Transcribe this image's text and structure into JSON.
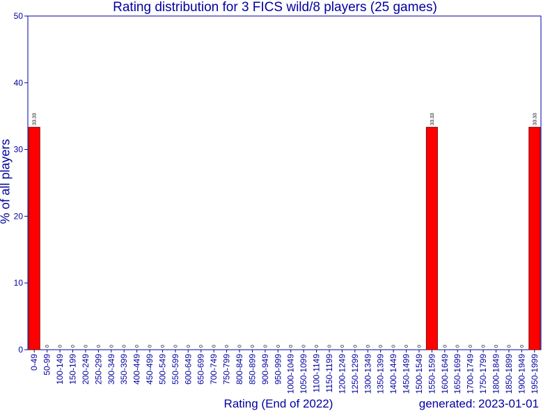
{
  "chart_data": {
    "type": "bar",
    "title": "Rating distribution for 3 FICS wild/8 players (25 games)",
    "xlabel": "Rating (End of 2022)",
    "ylabel": "% of all players",
    "ylim": [
      0,
      50
    ],
    "yticks": [
      0,
      10,
      20,
      30,
      40,
      50
    ],
    "grid": false,
    "categories": [
      "0-49",
      "50-99",
      "100-149",
      "150-199",
      "200-249",
      "250-299",
      "300-349",
      "350-399",
      "400-449",
      "450-499",
      "500-549",
      "550-599",
      "600-649",
      "650-699",
      "700-749",
      "750-799",
      "800-849",
      "850-899",
      "900-949",
      "950-999",
      "1000-1049",
      "1050-1099",
      "1100-1149",
      "1150-1199",
      "1200-1249",
      "1250-1299",
      "1300-1349",
      "1350-1399",
      "1400-1449",
      "1450-1499",
      "1500-1549",
      "1550-1599",
      "1600-1649",
      "1650-1699",
      "1700-1749",
      "1750-1799",
      "1800-1849",
      "1850-1899",
      "1900-1949",
      "1950-1999"
    ],
    "values": [
      33.33,
      0,
      0,
      0,
      0,
      0,
      0,
      0,
      0,
      0,
      0,
      0,
      0,
      0,
      0,
      0,
      0,
      0,
      0,
      0,
      0,
      0,
      0,
      0,
      0,
      0,
      0,
      0,
      0,
      0,
      0,
      33.33,
      0,
      0,
      0,
      0,
      0,
      0,
      0,
      33.33
    ],
    "data_labels": [
      "33.33",
      "0",
      "0",
      "0",
      "0",
      "0",
      "0",
      "0",
      "0",
      "0",
      "0",
      "0",
      "0",
      "0",
      "0",
      "0",
      "0",
      "0",
      "0",
      "0",
      "0",
      "0",
      "0",
      "0",
      "0",
      "0",
      "0",
      "0",
      "0",
      "0",
      "0",
      "33.33",
      "0",
      "0",
      "0",
      "0",
      "0",
      "0",
      "0",
      "33.33"
    ],
    "bar_color": "#ff0000",
    "bar_edge_color": "#800000",
    "axis_color": "#0000a0"
  },
  "footer": {
    "generated_label": "generated:",
    "generated_date": "2023-01-01"
  }
}
